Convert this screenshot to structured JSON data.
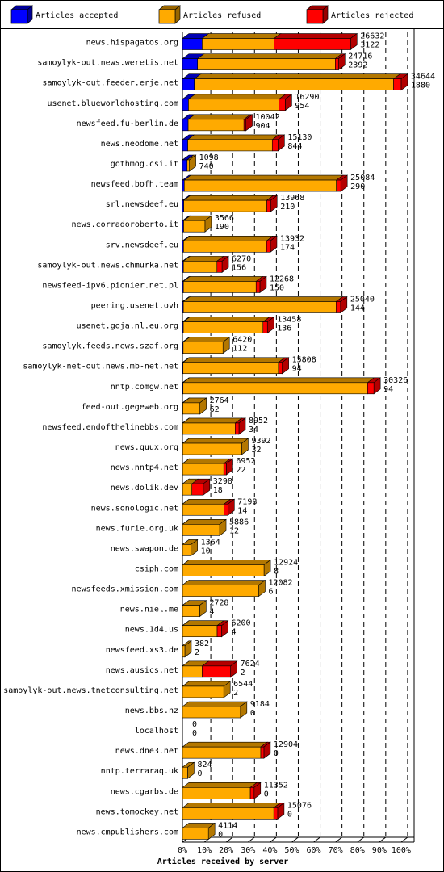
{
  "chart_data": {
    "type": "stacked-bar-3d",
    "orientation": "horizontal",
    "xlabel": "Articles received by server",
    "categories": [
      "news.hispagatos.org",
      "samoylyk-out.news.weretis.net",
      "samoylyk-out.feeder.erje.net",
      "usenet.blueworldhosting.com",
      "newsfeed.fu-berlin.de",
      "news.neodome.net",
      "gothmog.csi.it",
      "newsfeed.bofh.team",
      "srl.newsdeef.eu",
      "news.corradoroberto.it",
      "srv.newsdeef.eu",
      "samoylyk-out.news.chmurka.net",
      "newsfeed-ipv6.pionier.net.pl",
      "peering.usenet.ovh",
      "usenet.goja.nl.eu.org",
      "samoylyk.feeds.news.szaf.org",
      "samoylyk-net-out.news.mb-net.net",
      "nntp.comgw.net",
      "feed-out.gegeweb.org",
      "newsfeed.endofthelinebbs.com",
      "news.quux.org",
      "news.nntp4.net",
      "news.dolik.dev",
      "news.sonologic.net",
      "news.furie.org.uk",
      "news.swapon.de",
      "csiph.com",
      "newsfeeds.xmission.com",
      "news.niel.me",
      "news.1d4.us",
      "newsfeed.xs3.de",
      "news.ausics.net",
      "samoylyk-out.news.tnetconsulting.net",
      "news.bbs.nz",
      "localhost",
      "news.dne3.net",
      "nntp.terraraq.uk",
      "news.cgarbs.de",
      "news.tomockey.net",
      "news.cmpublishers.com"
    ],
    "totals": [
      26632,
      24716,
      34644,
      16290,
      10042,
      15130,
      1098,
      25084,
      13968,
      3566,
      13932,
      6270,
      12268,
      25040,
      13458,
      6420,
      15808,
      30326,
      2764,
      8952,
      9392,
      6952,
      3298,
      7198,
      5886,
      1364,
      12924,
      12082,
      2728,
      6200,
      382,
      7624,
      6544,
      9184,
      0,
      12904,
      824,
      11352,
      15076,
      4114
    ],
    "series": [
      {
        "name": "Articles accepted",
        "color": "#0000ff",
        "values": [
          3122,
          2392,
          1880,
          954,
          904,
          844,
          740,
          290,
          210,
          190,
          174,
          156,
          150,
          144,
          136,
          112,
          94,
          94,
          62,
          34,
          32,
          22,
          18,
          14,
          12,
          10,
          8,
          6,
          4,
          4,
          2,
          2,
          2,
          0,
          0,
          0,
          0,
          0,
          0,
          0
        ]
      },
      {
        "name": "Articles refused",
        "color": "#ffaa00",
        "values": [
          11410,
          21824,
          31564,
          14336,
          8838,
          13386,
          358,
          24094,
          13158,
          3376,
          13158,
          5314,
          11518,
          24196,
          12622,
          6308,
          15114,
          29232,
          2702,
          8318,
          9360,
          6530,
          1480,
          6584,
          5874,
          1354,
          12916,
          12076,
          2724,
          5496,
          380,
          3122,
          6542,
          9184,
          0,
          12404,
          824,
          10752,
          14476,
          4114
        ]
      },
      {
        "name": "Articles rejected",
        "color": "#ff0000",
        "values": [
          12100,
          500,
          1200,
          1000,
          300,
          900,
          0,
          700,
          600,
          0,
          600,
          800,
          600,
          700,
          700,
          0,
          600,
          1000,
          0,
          600,
          0,
          400,
          1800,
          600,
          0,
          0,
          0,
          0,
          0,
          700,
          0,
          4500,
          0,
          0,
          0,
          500,
          0,
          600,
          600,
          0
        ]
      }
    ],
    "xlim": [
      0,
      36700
    ],
    "xticks": [
      {
        "value": 0,
        "label": "0%"
      },
      {
        "value": 3464.4,
        "label": "10%"
      },
      {
        "value": 6928.8,
        "label": "20%"
      },
      {
        "value": 10393.2,
        "label": "30%"
      },
      {
        "value": 13857.6,
        "label": "40%"
      },
      {
        "value": 17322,
        "label": "50%"
      },
      {
        "value": 20786.4,
        "label": "60%"
      },
      {
        "value": 24250.8,
        "label": "70%"
      },
      {
        "value": 27715.2,
        "label": "80%"
      },
      {
        "value": 31179.6,
        "label": "90%"
      },
      {
        "value": 34644,
        "label": "100%"
      }
    ],
    "grid": true
  }
}
